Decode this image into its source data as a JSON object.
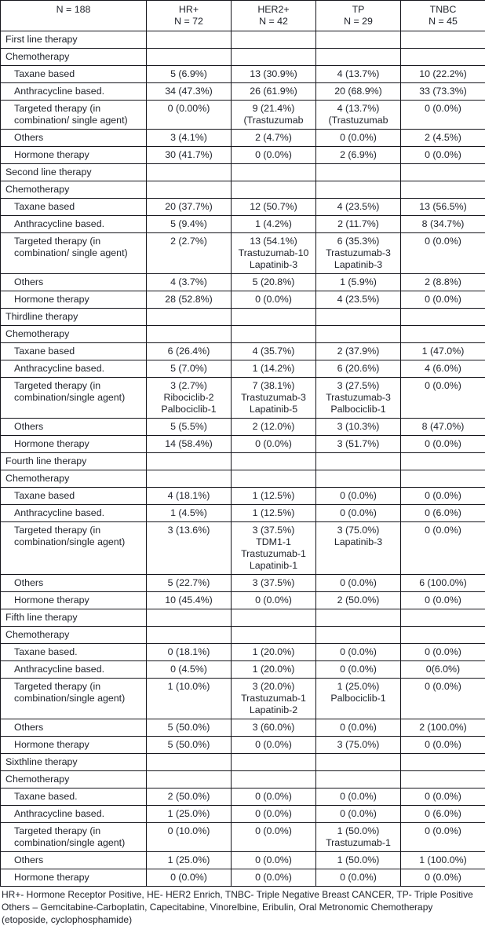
{
  "colors": {
    "background": "#ffffff",
    "text": "#21242c",
    "border": "#15151c"
  },
  "table": {
    "header": {
      "total": "N = 188",
      "columns": [
        {
          "name": "HR+",
          "n": "N = 72"
        },
        {
          "name": "HER2+",
          "n": "N = 42"
        },
        {
          "name": "TP",
          "n": "N = 29"
        },
        {
          "name": "TNBC",
          "n": "N = 45"
        }
      ]
    },
    "rows": [
      {
        "type": "section",
        "label": "First line therapy",
        "cells": [
          "",
          "",
          "",
          ""
        ]
      },
      {
        "type": "section",
        "label": "Chemotherapy",
        "cells": [
          "",
          "",
          "",
          ""
        ]
      },
      {
        "type": "data",
        "label": "Taxane based",
        "cells": [
          "5 (6.9%)",
          "13 (30.9%)",
          "4 (13.7%)",
          "10 (22.2%)"
        ]
      },
      {
        "type": "data",
        "label": "Anthracycline based.",
        "cells": [
          "34 (47.3%)",
          "26 (61.9%)",
          "20 (68.9%)",
          "33 (73.3%)"
        ]
      },
      {
        "type": "data",
        "label": "Targeted therapy (in combination/ single agent)",
        "cells": [
          "0 (0.00%)",
          "9 (21.4%)\n(Trastuzumab",
          "4 (13.7%)\n(Trastuzumab",
          "0 (0.0%)"
        ]
      },
      {
        "type": "data",
        "label": "Others",
        "cells": [
          "3 (4.1%)",
          "2 (4.7%)",
          "0 (0.0%)",
          "2 (4.5%)"
        ]
      },
      {
        "type": "data",
        "label": "Hormone therapy",
        "cells": [
          "30 (41.7%)",
          "0 (0.0%)",
          "2 (6.9%)",
          "0 (0.0%)"
        ]
      },
      {
        "type": "section",
        "label": "Second line therapy",
        "cells": [
          "",
          "",
          "",
          ""
        ]
      },
      {
        "type": "section",
        "label": "Chemotherapy",
        "cells": [
          "",
          "",
          "",
          ""
        ]
      },
      {
        "type": "data",
        "label": "Taxane based",
        "cells": [
          "20 (37.7%)",
          "12 (50.7%)",
          "4 (23.5%)",
          "13 (56.5%)"
        ]
      },
      {
        "type": "data",
        "label": "Anthracycline based.",
        "cells": [
          "5 (9.4%)",
          "1 (4.2%)",
          "2 (11.7%)",
          "8 (34.7%)"
        ]
      },
      {
        "type": "data",
        "label": "Targeted therapy (in combination/ single agent)",
        "cells": [
          "2 (2.7%)",
          "13 (54.1%)\nTrastuzumab-10\nLapatinib-3",
          "6 (35.3%)\nTrastuzumab-3\nLapatinib-3",
          "0 (0.0%)"
        ]
      },
      {
        "type": "data",
        "label": "Others",
        "cells": [
          "4 (3.7%)",
          "5 (20.8%)",
          "1 (5.9%)",
          "2 (8.8%)"
        ]
      },
      {
        "type": "data",
        "label": "Hormone therapy",
        "cells": [
          "28 (52.8%)",
          "0 (0.0%)",
          "4 (23.5%)",
          "0 (0.0%)"
        ]
      },
      {
        "type": "section",
        "label": "Thirdline therapy",
        "cells": [
          "",
          "",
          "",
          ""
        ]
      },
      {
        "type": "section",
        "label": "Chemotherapy",
        "cells": [
          "",
          "",
          "",
          ""
        ]
      },
      {
        "type": "data",
        "label": "Taxane based",
        "cells": [
          "6 (26.4%)",
          "4 (35.7%)",
          "2 (37.9%)",
          "1 (47.0%)"
        ]
      },
      {
        "type": "data",
        "label": "Anthracycline based.",
        "cells": [
          "5 (7.0%)",
          "1 (14.2%)",
          "6 (20.6%)",
          "4 (6.0%)"
        ]
      },
      {
        "type": "data",
        "label": "Targeted therapy (in combination/single agent)",
        "cells": [
          "3 (2.7%)\nRibociclib-2\nPalbociclib-1",
          "7 (38.1%)\nTrastuzumab-3\nLapatinib-5",
          "3 (27.5%)\nTrastuzumab-3\nPalbociclib-1",
          "0 (0.0%)"
        ]
      },
      {
        "type": "data",
        "label": "Others",
        "cells": [
          "5 (5.5%)",
          "2 (12.0%)",
          "3 (10.3%)",
          "8 (47.0%)"
        ]
      },
      {
        "type": "data",
        "label": "Hormone therapy",
        "cells": [
          "14 (58.4%)",
          "0 (0.0%)",
          "3 (51.7%)",
          "0 (0.0%)"
        ]
      },
      {
        "type": "section",
        "label": "Fourth line therapy",
        "cells": [
          "",
          "",
          "",
          ""
        ]
      },
      {
        "type": "section",
        "label": "Chemotherapy",
        "cells": [
          "",
          "",
          "",
          ""
        ]
      },
      {
        "type": "data",
        "label": "Taxane based",
        "cells": [
          "4 (18.1%)",
          "1 (12.5%)",
          "0 (0.0%)",
          "0 (0.0%)"
        ]
      },
      {
        "type": "data",
        "label": "Anthracycline based.",
        "cells": [
          "1 (4.5%)",
          "1 (12.5%)",
          "0 (0.0%)",
          "0 (6.0%)"
        ]
      },
      {
        "type": "data",
        "label": "Targeted therapy (in combination/single agent)",
        "cells": [
          "3 (13.6%)",
          "3 (37.5%)\nTDM1-1\nTrastuzumab-1\nLapatinib-1",
          "3 (75.0%)\nLapatinib-3",
          "0 (0.0%)"
        ]
      },
      {
        "type": "data",
        "label": "Others",
        "cells": [
          "5 (22.7%)",
          "3 (37.5%)",
          "0 (0.0%)",
          "6 (100.0%)"
        ]
      },
      {
        "type": "data",
        "label": "Hormone therapy",
        "cells": [
          "10 (45.4%)",
          "0 (0.0%)",
          "2 (50.0%)",
          "0 (0.0%)"
        ]
      },
      {
        "type": "section",
        "label": "Fifth line therapy",
        "cells": [
          "",
          "",
          "",
          ""
        ]
      },
      {
        "type": "section",
        "label": "Chemotherapy",
        "cells": [
          "",
          "",
          "",
          ""
        ]
      },
      {
        "type": "data",
        "label": "Taxane based.",
        "cells": [
          "0 (18.1%)",
          "1 (20.0%)",
          "0 (0.0%)",
          "0 (0.0%)"
        ]
      },
      {
        "type": "data",
        "label": "Anthracycline based.",
        "cells": [
          "0 (4.5%)",
          "1 (20.0%)",
          "0 (0.0%)",
          "0(6.0%)"
        ]
      },
      {
        "type": "data",
        "label": "Targeted therapy (in combination/single agent)",
        "cells": [
          "1 (10.0%)",
          "3 (20.0%)\nTrastuzumab-1\nLapatinib-2",
          "1 (25.0%)\nPalbociclib-1",
          "0 (0.0%)"
        ]
      },
      {
        "type": "data",
        "label": "Others",
        "cells": [
          "5 (50.0%)",
          "3 (60.0%)",
          "0 (0.0%)",
          "2 (100.0%)"
        ]
      },
      {
        "type": "data",
        "label": "Hormone therapy",
        "cells": [
          "5 (50.0%)",
          "0 (0.0%)",
          "3 (75.0%)",
          "0 (0.0%)"
        ]
      },
      {
        "type": "section",
        "label": "Sixthline therapy",
        "cells": [
          "",
          "",
          "",
          ""
        ]
      },
      {
        "type": "section",
        "label": "Chemotherapy",
        "cells": [
          "",
          "",
          "",
          ""
        ]
      },
      {
        "type": "data",
        "label": "Taxane based.",
        "cells": [
          "2 (50.0%)",
          "0 (0.0%)",
          "0 (0.0%)",
          "0 (0.0%)"
        ]
      },
      {
        "type": "data",
        "label": "Anthracycline based.",
        "cells": [
          "1 (25.0%)",
          "0 (0.0%)",
          "0 (0.0%)",
          "0 (6.0%)"
        ]
      },
      {
        "type": "data",
        "label": "Targeted therapy (in combination/single agent)",
        "cells": [
          "0 (10.0%)",
          "0 (0.0%)",
          "1 (50.0%)\nTrastuzumab-1",
          "0 (0.0%)"
        ]
      },
      {
        "type": "data",
        "label": "Others",
        "cells": [
          "1 (25.0%)",
          "0 (0.0%)",
          "1 (50.0%)",
          "1 (100.0%)"
        ]
      },
      {
        "type": "data",
        "label": "Hormone therapy",
        "cells": [
          "0 (0.0%)",
          "0 (0.0%)",
          "0 (0.0%)",
          "0 (0.0%)"
        ]
      }
    ]
  },
  "footnote": {
    "text": "HR+- Hormone Receptor Positive, HE- HER2 Enrich, TNBC- Triple Negative Breast CANCER, TP- Triple Positive\nOthers – Gemcitabine-Carboplatin, Capecitabine, Vinorelbine, Eribulin, Oral Metronomic Chemotherapy\n(etoposide, cyclophosphamide)"
  }
}
